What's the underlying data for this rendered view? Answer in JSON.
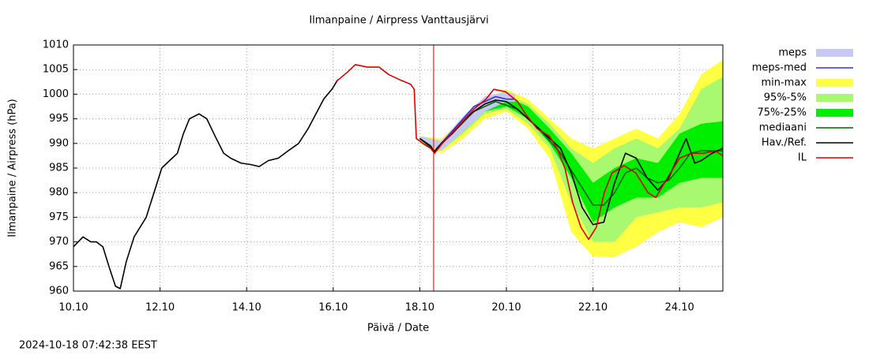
{
  "chart_data": {
    "type": "line",
    "title": "Ilmanpaine / Airpress Vanttausjärvi",
    "x_label": "Päivä / Date",
    "y_label": "Ilmanpaine / Airpress (hPa)",
    "timestamp": "2024-10-18 07:42:38 EEST",
    "xlim": [
      10,
      25
    ],
    "ylim": [
      960,
      1010
    ],
    "xticks": [
      {
        "value": 10,
        "label": "10.10"
      },
      {
        "value": 12,
        "label": "12.10"
      },
      {
        "value": 14,
        "label": "14.10"
      },
      {
        "value": 16,
        "label": "16.10"
      },
      {
        "value": 18,
        "label": "18.10"
      },
      {
        "value": 20,
        "label": "20.10"
      },
      {
        "value": 22,
        "label": "22.10"
      },
      {
        "value": 24,
        "label": "24.10"
      }
    ],
    "yticks": [
      960,
      965,
      970,
      975,
      980,
      985,
      990,
      995,
      1000,
      1005,
      1010
    ],
    "grid": true,
    "now_line": {
      "x": 18.32,
      "color": "#cc0000"
    },
    "series": [
      {
        "name": "meps",
        "kind": "band",
        "color": "#c8c8f5",
        "x": [
          18,
          18.5,
          19,
          19.5,
          20,
          20.2
        ],
        "low": [
          990.5,
          988.5,
          992.5,
          996.5,
          998.5,
          998.5
        ],
        "high": [
          991.5,
          990.5,
          995.5,
          999.5,
          1000.5,
          1000
        ]
      },
      {
        "name": "meps-med",
        "kind": "line",
        "color": "#3333cc",
        "x": [
          18,
          18.34,
          18.75,
          19.25,
          19.75,
          20,
          20.2
        ],
        "values": [
          991,
          988.5,
          992.5,
          997.5,
          999.5,
          999,
          999
        ]
      },
      {
        "name": "min-max",
        "kind": "band",
        "color": "#ffff44",
        "x": [
          18,
          18.5,
          19,
          19.5,
          20,
          20.5,
          21,
          21.5,
          22,
          22.5,
          23,
          23.5,
          24,
          24.5,
          25
        ],
        "low": [
          990,
          988,
          991,
          995,
          996.5,
          993,
          987,
          972,
          967,
          967,
          969,
          972,
          974,
          973,
          975
        ],
        "high": [
          991.5,
          991,
          995,
          999,
          1001,
          999,
          995,
          991,
          989,
          991,
          993,
          991,
          996,
          1004,
          1007
        ]
      },
      {
        "name": "95%-5%",
        "kind": "band",
        "color": "#a8f870",
        "x": [
          18,
          18.5,
          19,
          19.5,
          20,
          20.5,
          21,
          21.5,
          22,
          22.5,
          23,
          23.5,
          24,
          24.5,
          25
        ],
        "low": [
          990.5,
          988.5,
          992,
          996,
          997,
          994,
          989,
          978,
          970,
          970,
          975,
          976,
          977,
          977,
          978
        ],
        "high": [
          991,
          990.5,
          994.5,
          998.5,
          1000,
          998,
          994,
          989,
          986,
          989,
          991,
          989,
          993,
          1001,
          1003.5
        ]
      },
      {
        "name": "75%-25%",
        "kind": "band",
        "color": "#00ee00",
        "x": [
          18,
          18.5,
          19,
          19.5,
          20,
          20.5,
          21,
          21.5,
          22,
          22.5,
          23,
          23.5,
          24,
          24.5,
          25
        ],
        "low": [
          990.8,
          989,
          992.5,
          996.5,
          997.5,
          995,
          990,
          983,
          974,
          977,
          979,
          979,
          982,
          983,
          983
        ],
        "high": [
          991,
          990.3,
          994,
          998,
          999.5,
          997.5,
          993,
          988,
          982,
          985,
          987,
          986,
          992,
          994,
          994.5
        ]
      },
      {
        "name": "mediaani",
        "kind": "line",
        "color": "#006600",
        "x": [
          18,
          18.34,
          18.75,
          19.25,
          19.75,
          20.25,
          20.75,
          21.25,
          21.75,
          22,
          22.25,
          22.5,
          22.75,
          23,
          23.25,
          23.5,
          23.75,
          24,
          24.25,
          24.5,
          24.75,
          25
        ],
        "values": [
          991,
          988.5,
          992,
          996.5,
          998.5,
          997,
          993,
          988,
          981,
          977.5,
          977.5,
          980,
          984,
          985,
          983,
          982,
          982.5,
          985,
          988,
          988.5,
          988.5,
          988.5
        ]
      },
      {
        "name": "Hav./Ref.",
        "kind": "line",
        "color": "#000000",
        "x": [
          10,
          10.22,
          10.4,
          10.53,
          10.68,
          10.82,
          10.97,
          11.08,
          11.22,
          11.4,
          11.68,
          11.86,
          12.04,
          12.22,
          12.4,
          12.54,
          12.68,
          12.9,
          13.08,
          13.27,
          13.47,
          13.63,
          13.87,
          14.1,
          14.29,
          14.5,
          14.73,
          14.96,
          15.2,
          15.42,
          15.6,
          15.78,
          15.97,
          16.11,
          17,
          18,
          18.25,
          18.34,
          18.5,
          18.75,
          19,
          19.25,
          19.5,
          19.75,
          20,
          20.25,
          20.5,
          20.75,
          21,
          21.25,
          21.5,
          21.75,
          22,
          22.25,
          22.5,
          22.75,
          23,
          23.25,
          23.5,
          23.75,
          24,
          24.15,
          24.35,
          24.5,
          24.75,
          25
        ],
        "values": [
          969,
          971,
          970,
          970,
          969,
          965,
          961,
          960.5,
          966,
          971,
          975,
          980,
          985,
          986.5,
          988,
          992,
          995,
          996,
          995,
          991.5,
          988,
          987,
          986,
          985.7,
          985.3,
          986.5,
          987,
          988.5,
          990,
          993,
          996,
          999,
          1001,
          1003,
          null,
          991,
          989.5,
          988.3,
          990,
          992,
          994.5,
          996.5,
          998,
          998.8,
          998.5,
          997,
          995,
          993,
          991,
          989,
          984,
          977,
          973.5,
          974,
          982,
          988,
          987,
          983,
          980.5,
          983,
          988,
          991,
          986,
          986.5,
          988,
          989
        ]
      },
      {
        "name": "IL",
        "kind": "line",
        "color": "#dd0000",
        "x": [
          16.06,
          16.33,
          16.51,
          16.79,
          17.06,
          17.28,
          17.52,
          17.79,
          17.87,
          17.92,
          18.07,
          18.25,
          18.34,
          18.52,
          18.89,
          19.25,
          19.53,
          19.71,
          19.98,
          20.26,
          20.44,
          20.71,
          20.99,
          21.17,
          21.35,
          21.53,
          21.72,
          21.9,
          22.08,
          22.26,
          22.44,
          22.72,
          22.99,
          23.27,
          23.45,
          23.72,
          24,
          24.27,
          24.55,
          24.82,
          25
        ],
        "values": [
          1002.5,
          1004.5,
          1006,
          1005.5,
          1005.5,
          1004,
          1003,
          1002,
          1001,
          991,
          990,
          989,
          988,
          990,
          993.5,
          997,
          999,
          1001,
          1000.5,
          998.5,
          996,
          993,
          991.5,
          989,
          985,
          978,
          973,
          970.5,
          973,
          980,
          984,
          985.5,
          984,
          980,
          979,
          983,
          987,
          988,
          988,
          988.5,
          987.5
        ]
      }
    ]
  }
}
